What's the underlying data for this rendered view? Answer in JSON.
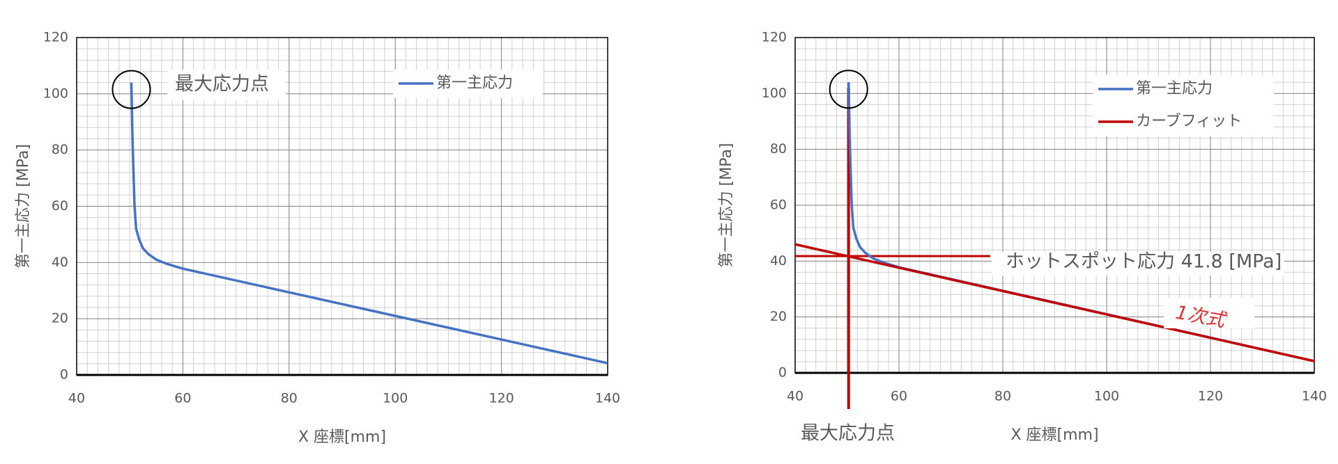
{
  "chart_data": [
    {
      "type": "line",
      "xlabel": "X 座標[mm]",
      "ylabel": "第一主応力 [MPa]",
      "xlim": [
        40,
        140
      ],
      "xticks": [
        40,
        60,
        80,
        100,
        120,
        140
      ],
      "ylim": [
        0,
        120
      ],
      "yticks": [
        0,
        20,
        40,
        60,
        80,
        100,
        120
      ],
      "grid": true,
      "series": [
        {
          "name": "第一主応力",
          "color": "#4472c4",
          "x": [
            50.3,
            50.4,
            50.5,
            50.7,
            50.9,
            51.2,
            51.8,
            52.5,
            53.5,
            55,
            57,
            60,
            80,
            100,
            120,
            140
          ],
          "values": [
            104,
            95,
            85,
            72,
            60,
            52,
            48,
            45,
            43,
            41,
            39.5,
            37.8,
            29.4,
            21,
            12.6,
            4.2
          ]
        }
      ],
      "annotations": [
        "最大応力点"
      ]
    },
    {
      "type": "line",
      "xlabel": "X 座標[mm]",
      "ylabel": "第一主応力 [MPa]",
      "xlim": [
        40,
        140
      ],
      "xticks": [
        40,
        60,
        80,
        100,
        120,
        140
      ],
      "ylim": [
        0,
        120
      ],
      "yticks": [
        0,
        20,
        40,
        60,
        80,
        100,
        120
      ],
      "grid": true,
      "series": [
        {
          "name": "第一主応力",
          "color": "#4472c4",
          "x": [
            50.3,
            50.4,
            50.5,
            50.7,
            50.9,
            51.2,
            51.8,
            52.5,
            53.5,
            55,
            57,
            60,
            80,
            100,
            120,
            140
          ],
          "values": [
            104,
            95,
            85,
            72,
            60,
            52,
            48,
            45,
            43,
            41,
            39.5,
            37.8,
            29.4,
            21,
            12.6,
            4.2
          ]
        },
        {
          "name": "カーブフィット",
          "color": "#c00000",
          "x": [
            40,
            140
          ],
          "values": [
            46,
            4.2
          ]
        }
      ],
      "hotspot": {
        "value": 41.8,
        "label": "ホットスポット応力 41.8 [MPa]"
      },
      "annotations": [
        "1次式",
        "最大応力点"
      ]
    }
  ]
}
